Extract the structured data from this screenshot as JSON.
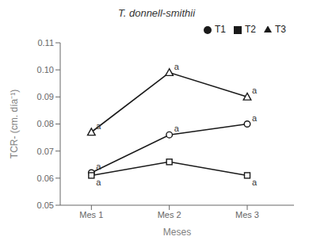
{
  "chart_data": {
    "type": "line",
    "title": "T. donnell-smithii",
    "xlabel": "Meses",
    "ylabel": "TCR- (cm. día⁻¹)",
    "x": [
      1,
      2,
      3
    ],
    "xlim": [
      0.6,
      3.6
    ],
    "xticks": [
      {
        "value": 1,
        "label": "Mes 1"
      },
      {
        "value": 2,
        "label": "Mes 2"
      },
      {
        "value": 3,
        "label": "Mes 3"
      }
    ],
    "ylim": [
      0.05,
      0.11
    ],
    "yticks": [
      0.05,
      0.06,
      0.07,
      0.08,
      0.09,
      {
        "value": 0.1,
        "label": "0.10"
      },
      0.11
    ],
    "series": [
      {
        "name": "T1",
        "color": "#1a1a1a",
        "marker": "circle",
        "values": [
          0.062,
          0.076,
          0.08
        ]
      },
      {
        "name": "T2",
        "color": "#1a1a1a",
        "marker": "square",
        "values": [
          0.061,
          0.066,
          0.061
        ]
      },
      {
        "name": "T3",
        "color": "#1a1a1a",
        "marker": "triangle",
        "values": [
          0.077,
          0.099,
          0.09
        ]
      }
    ],
    "annotations": [
      {
        "text": "a",
        "x": 1,
        "y": 0.062
      },
      {
        "text": "a",
        "x": 2,
        "y": 0.076
      },
      {
        "text": "a",
        "x": 3,
        "y": 0.08
      },
      {
        "text": "a",
        "x": 1,
        "y": 0.061
      },
      {
        "text": "a",
        "x": 3,
        "y": 0.061
      },
      {
        "text": "a",
        "x": 1,
        "y": 0.077
      },
      {
        "text": "a",
        "x": 2,
        "y": 0.099
      },
      {
        "text": "a",
        "x": 3,
        "y": 0.09
      }
    ],
    "grid": false,
    "legend": "upper right"
  }
}
